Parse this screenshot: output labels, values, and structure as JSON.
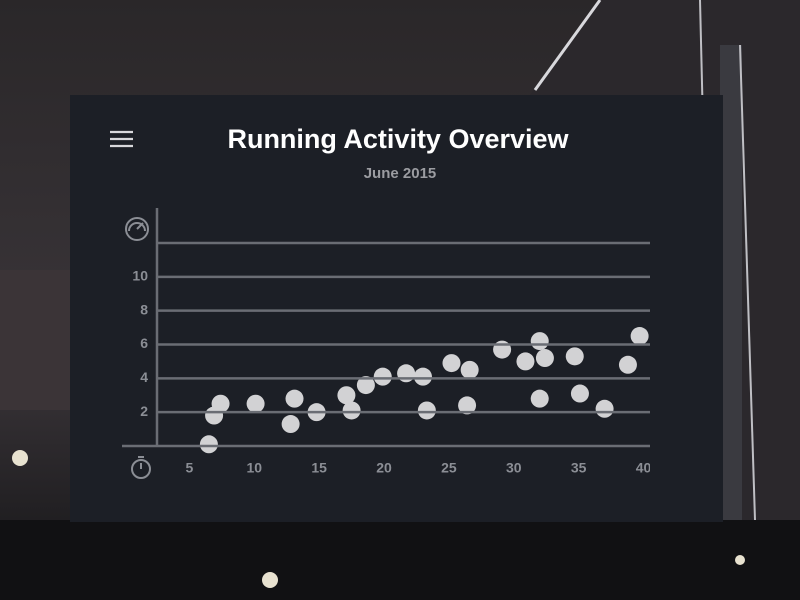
{
  "chart_data": {
    "type": "scatter",
    "title": "Running Activity Overview",
    "subtitle": "June 2015",
    "x": [
      6.5,
      6.9,
      7.4,
      10.1,
      13.1,
      12.8,
      14.8,
      17.1,
      17.5,
      18.6,
      19.9,
      21.7,
      23.0,
      23.3,
      25.2,
      26.6,
      26.4,
      29.1,
      30.9,
      32.0,
      32.4,
      32.0,
      34.7,
      35.1,
      37.0,
      38.8,
      39.7
    ],
    "values": [
      0.1,
      1.8,
      2.5,
      2.5,
      2.8,
      1.3,
      2.0,
      3.0,
      2.1,
      3.6,
      4.1,
      4.3,
      4.1,
      2.1,
      4.9,
      4.5,
      2.4,
      5.7,
      5.0,
      6.2,
      5.2,
      2.8,
      5.3,
      3.1,
      2.2,
      4.8,
      6.5
    ],
    "color": "#d2d2d4",
    "xlim": [
      2.5,
      40.5
    ],
    "xticks": [
      5,
      10,
      15,
      20,
      25,
      30,
      35,
      40
    ],
    "ylim": [
      0,
      12
    ],
    "yticks": [
      2,
      4,
      6,
      8,
      10
    ],
    "grid": true
  }
}
